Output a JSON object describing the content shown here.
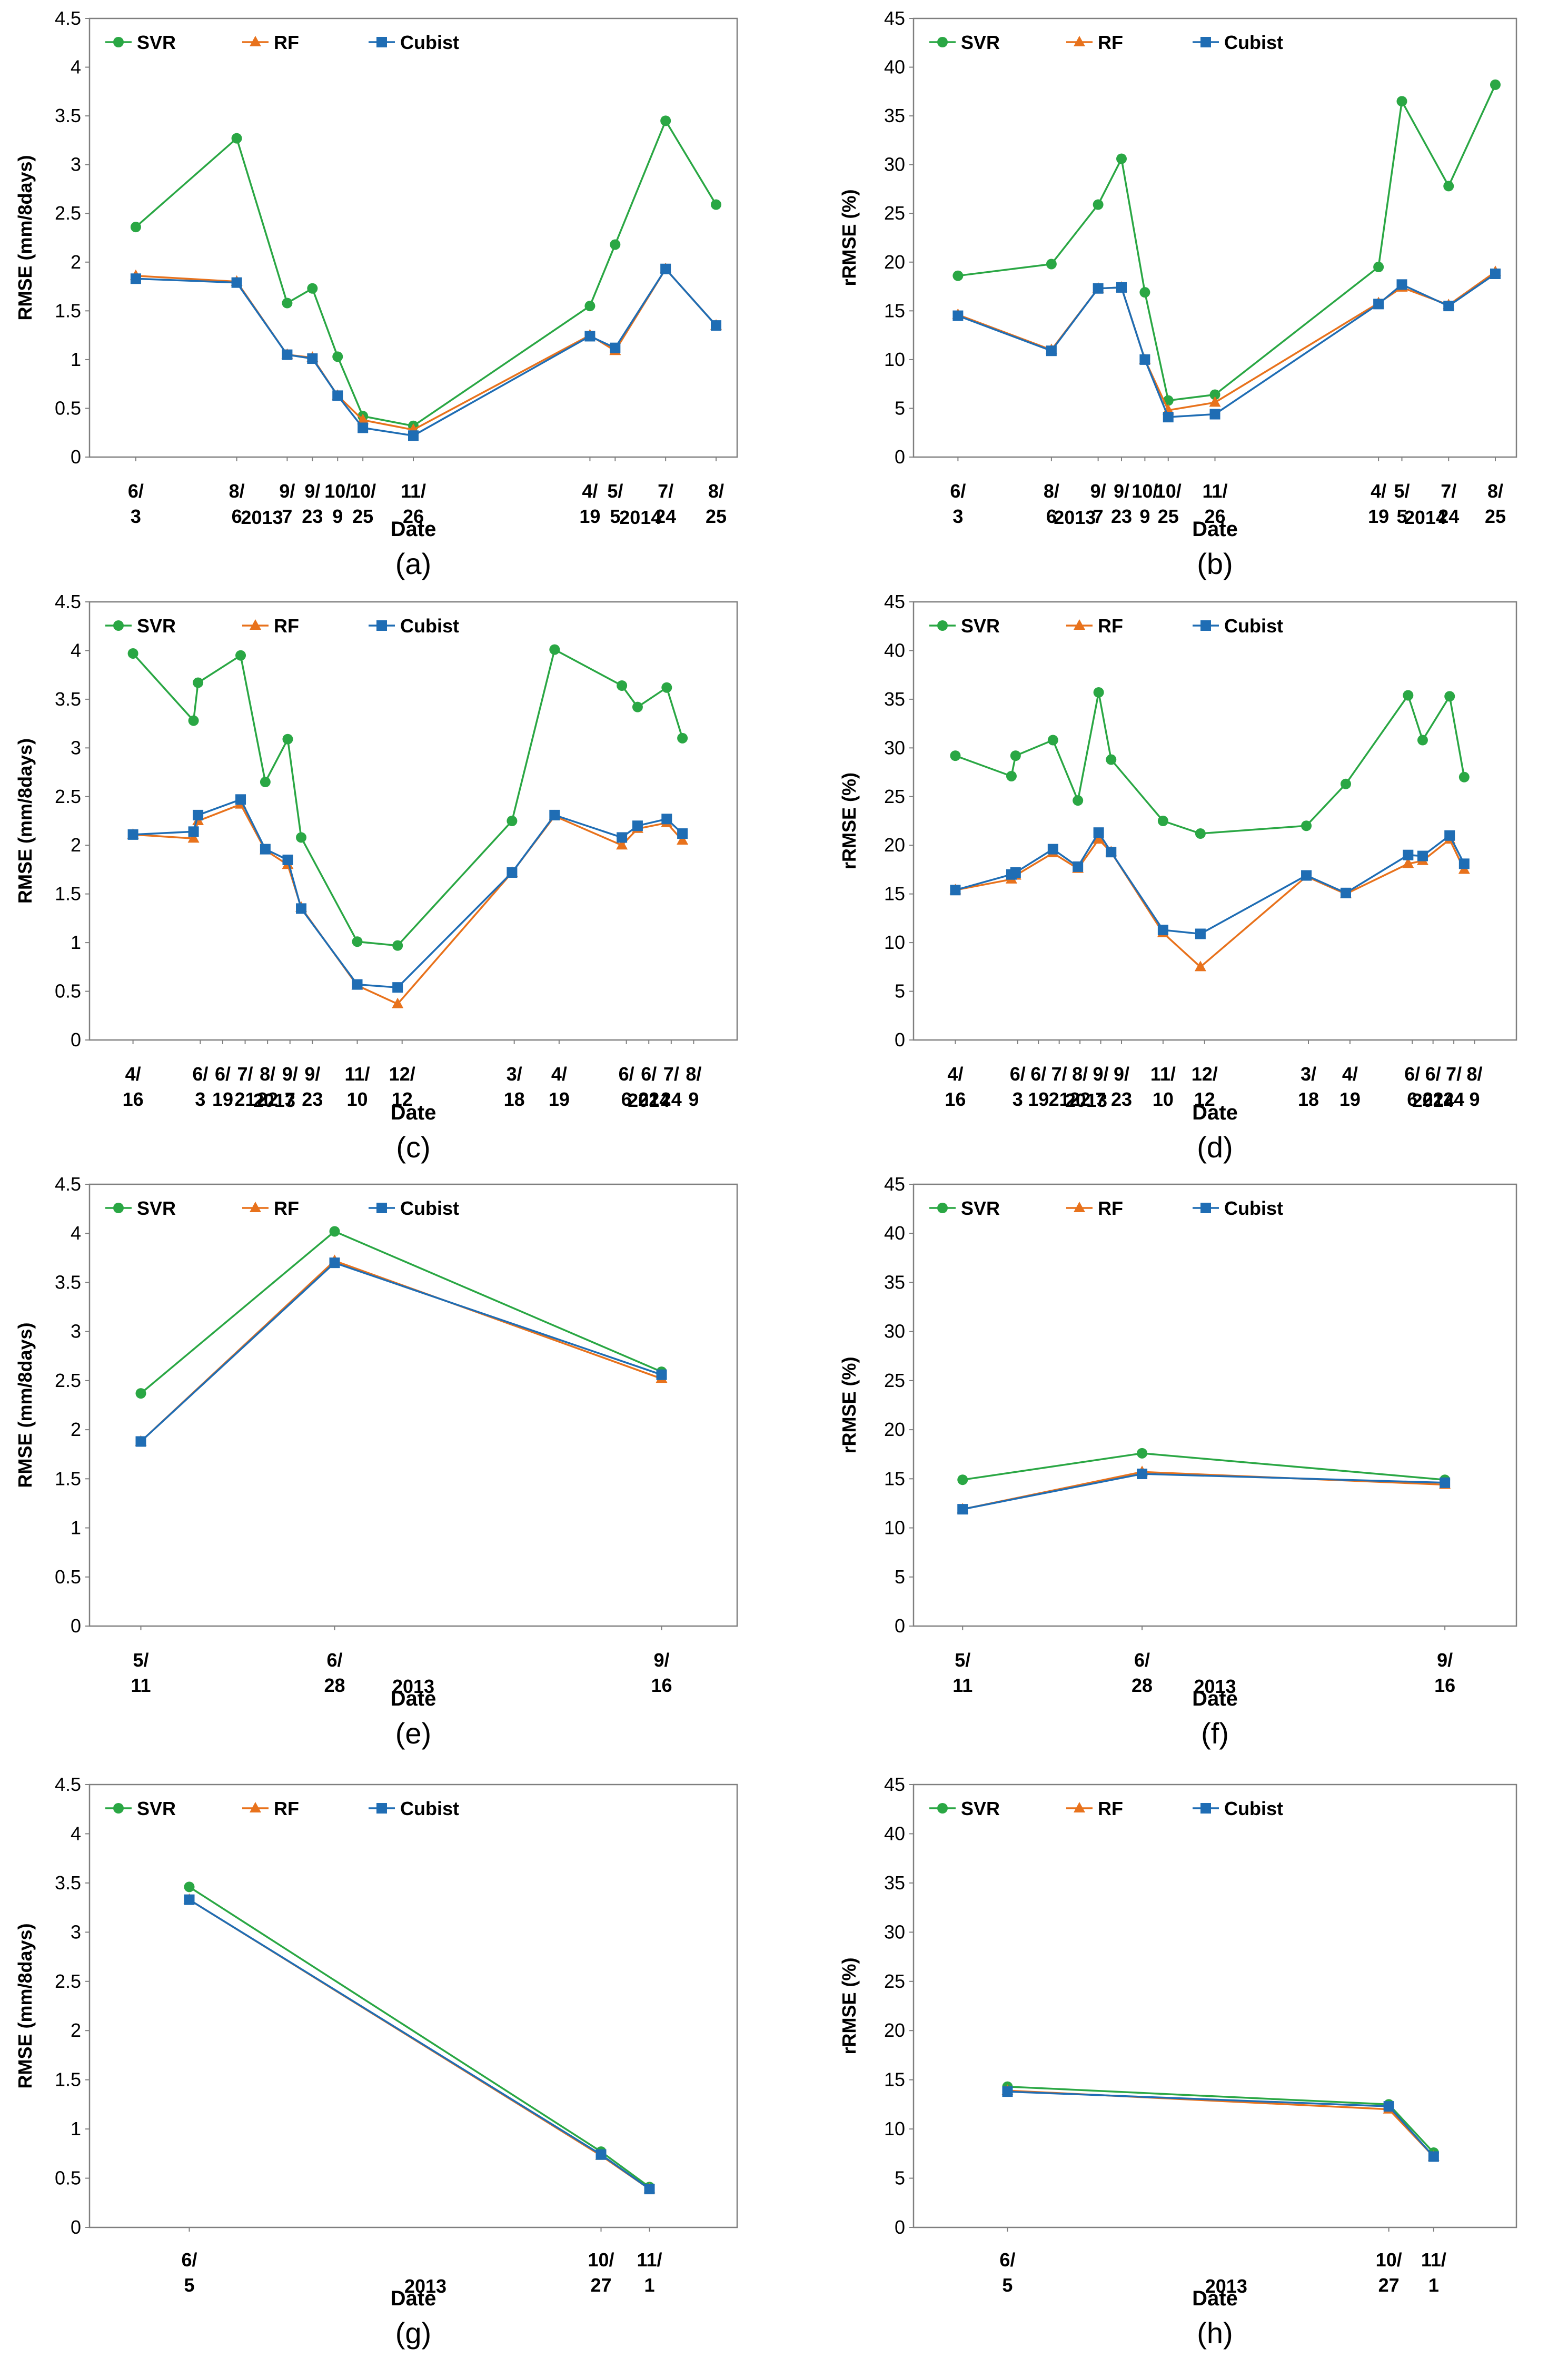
{
  "colors": {
    "SVR": "#2aa744",
    "RF": "#e8721c",
    "Cubist": "#1f6db4",
    "frame": "#7f7f7f"
  },
  "chart_data": [
    {
      "type": "line",
      "panel": "(a)",
      "title": "",
      "xlabel": "Date",
      "ylabel": "RMSE (mm/8days)",
      "ylim": [
        0,
        4.5
      ],
      "yticks": [
        "0",
        "0.5",
        "1",
        "1.5",
        "2",
        "2.5",
        "3",
        "3.5",
        "4",
        "4.5"
      ],
      "xrange": [
        0,
        24
      ],
      "x_ticks": [
        {
          "x": 1,
          "m": "6/",
          "d": "3"
        },
        {
          "x": 5,
          "m": "8/",
          "d": "6"
        },
        {
          "x": 7,
          "m": "9/",
          "d": "7"
        },
        {
          "x": 8,
          "m": "9/",
          "d": "23"
        },
        {
          "x": 9,
          "m": "10/",
          "d": "9"
        },
        {
          "x": 10,
          "m": "10/",
          "d": "25"
        },
        {
          "x": 12,
          "m": "11/",
          "d": "26"
        },
        {
          "x": 19,
          "m": "4/",
          "d": "19"
        },
        {
          "x": 20,
          "m": "5/",
          "d": "5"
        },
        {
          "x": 22,
          "m": "7/",
          "d": "24"
        },
        {
          "x": 24,
          "m": "8/",
          "d": "25"
        }
      ],
      "years": [
        {
          "label": "2013",
          "x": 6
        },
        {
          "label": "2014",
          "x": 21
        }
      ],
      "legend": [
        "SVR",
        "RF",
        "Cubist"
      ],
      "series": [
        {
          "name": "SVR",
          "x": [
            1,
            5,
            7,
            8,
            9,
            10,
            12,
            19,
            20,
            22,
            24
          ],
          "values": [
            2.36,
            3.27,
            1.58,
            1.73,
            1.03,
            0.42,
            0.32,
            1.55,
            2.18,
            3.45,
            2.59
          ]
        },
        {
          "name": "RF",
          "x": [
            1,
            5,
            7,
            8,
            9,
            10,
            12,
            19,
            20,
            22,
            24
          ],
          "values": [
            1.86,
            1.8,
            1.05,
            1.02,
            0.63,
            0.38,
            0.28,
            1.25,
            1.09,
            1.93,
            1.35
          ]
        },
        {
          "name": "Cubist",
          "x": [
            1,
            5,
            7,
            8,
            9,
            10,
            12,
            19,
            20,
            22,
            24
          ],
          "values": [
            1.83,
            1.79,
            1.05,
            1.01,
            0.63,
            0.3,
            0.22,
            1.24,
            1.12,
            1.93,
            1.35
          ]
        }
      ]
    },
    {
      "type": "line",
      "panel": "(b)",
      "title": "",
      "xlabel": "Date",
      "ylabel": "rRMSE (%)",
      "ylim": [
        0,
        45
      ],
      "yticks": [
        "0",
        "5",
        "10",
        "15",
        "20",
        "25",
        "30",
        "35",
        "40",
        "45"
      ],
      "xrange": [
        0,
        24
      ],
      "x_ticks": [
        {
          "x": 1,
          "m": "6/",
          "d": "3"
        },
        {
          "x": 5,
          "m": "8/",
          "d": "6"
        },
        {
          "x": 7,
          "m": "9/",
          "d": "7"
        },
        {
          "x": 8,
          "m": "9/",
          "d": "23"
        },
        {
          "x": 9,
          "m": "10/",
          "d": "9"
        },
        {
          "x": 10,
          "m": "10/",
          "d": "25"
        },
        {
          "x": 12,
          "m": "11/",
          "d": "26"
        },
        {
          "x": 19,
          "m": "4/",
          "d": "19"
        },
        {
          "x": 20,
          "m": "5/",
          "d": "5"
        },
        {
          "x": 22,
          "m": "7/",
          "d": "24"
        },
        {
          "x": 24,
          "m": "8/",
          "d": "25"
        }
      ],
      "years": [
        {
          "label": "2013",
          "x": 6
        },
        {
          "label": "2014",
          "x": 21
        }
      ],
      "legend": [
        "SVR",
        "RF",
        "Cubist"
      ],
      "series": [
        {
          "name": "SVR",
          "x": [
            1,
            5,
            7,
            8,
            9,
            10,
            12,
            19,
            20,
            22,
            24
          ],
          "values": [
            18.6,
            19.8,
            25.9,
            30.6,
            16.9,
            5.8,
            6.4,
            19.5,
            36.5,
            27.8,
            38.2
          ]
        },
        {
          "name": "RF",
          "x": [
            1,
            5,
            7,
            8,
            9,
            10,
            12,
            19,
            20,
            22,
            24
          ],
          "values": [
            14.6,
            11.0,
            17.3,
            17.4,
            10.0,
            4.8,
            5.6,
            15.8,
            17.4,
            15.6,
            19.0
          ]
        },
        {
          "name": "Cubist",
          "x": [
            1,
            5,
            7,
            8,
            9,
            10,
            12,
            19,
            20,
            22,
            24
          ],
          "values": [
            14.5,
            10.9,
            17.3,
            17.4,
            10.0,
            4.1,
            4.4,
            15.7,
            17.7,
            15.5,
            18.8
          ]
        }
      ]
    },
    {
      "type": "line",
      "panel": "(c)",
      "title": "",
      "xlabel": "Date",
      "ylabel": "RMSE (mm/8days)",
      "ylim": [
        0,
        4.5
      ],
      "yticks": [
        "0",
        "0.5",
        "1",
        "1.5",
        "2",
        "2.5",
        "3",
        "3.5",
        "4",
        "4.5"
      ],
      "xrange": [
        0,
        27
      ],
      "x_ticks": [
        {
          "x": 1,
          "m": "4/",
          "d": "16"
        },
        {
          "x": 4,
          "m": "6/",
          "d": "3"
        },
        {
          "x": 5,
          "m": "6/",
          "d": "19"
        },
        {
          "x": 6,
          "m": "7/",
          "d": "21"
        },
        {
          "x": 7,
          "m": "8/",
          "d": "22"
        },
        {
          "x": 8,
          "m": "9/",
          "d": "7"
        },
        {
          "x": 9,
          "m": "9/",
          "d": "23"
        },
        {
          "x": 11,
          "m": "11/",
          "d": "10"
        },
        {
          "x": 13,
          "m": "12/",
          "d": "12"
        },
        {
          "x": 18,
          "m": "3/",
          "d": "18"
        },
        {
          "x": 20,
          "m": "4/",
          "d": "19"
        },
        {
          "x": 23,
          "m": "6/",
          "d": "6"
        },
        {
          "x": 24,
          "m": "6/",
          "d": "22"
        },
        {
          "x": 25,
          "m": "7/",
          "d": "24"
        },
        {
          "x": 26,
          "m": "8/",
          "d": "9"
        }
      ],
      "years": [
        {
          "label": "2013",
          "x": 7.3
        },
        {
          "label": "2014",
          "x": 24
        }
      ],
      "legend": [
        "SVR",
        "RF",
        "Cubist"
      ],
      "series": [
        {
          "name": "SVR",
          "x": [
            1,
            3.7,
            3.9,
            5.8,
            6.9,
            7.9,
            8.5,
            11,
            12.8,
            17.9,
            19.8,
            22.8,
            23.5,
            24.8,
            25.5
          ],
          "values": [
            3.97,
            3.28,
            3.67,
            3.95,
            2.65,
            3.09,
            2.08,
            1.01,
            0.97,
            2.25,
            4.01,
            3.64,
            3.42,
            3.62,
            3.1
          ]
        },
        {
          "name": "RF",
          "x": [
            1,
            3.7,
            3.9,
            5.8,
            6.9,
            7.9,
            8.5,
            11,
            12.8,
            17.9,
            19.8,
            22.8,
            23.5,
            24.8,
            25.5
          ],
          "values": [
            2.11,
            2.07,
            2.25,
            2.42,
            1.95,
            1.8,
            1.36,
            0.56,
            0.37,
            1.72,
            2.3,
            2.0,
            2.17,
            2.23,
            2.05
          ]
        },
        {
          "name": "Cubist",
          "x": [
            1,
            3.7,
            3.9,
            5.8,
            6.9,
            7.9,
            8.5,
            11,
            12.8,
            17.9,
            19.8,
            22.8,
            23.5,
            24.8,
            25.5
          ],
          "values": [
            2.11,
            2.14,
            2.31,
            2.47,
            1.96,
            1.85,
            1.35,
            0.57,
            0.54,
            1.72,
            2.31,
            2.08,
            2.2,
            2.27,
            2.12
          ]
        }
      ]
    },
    {
      "type": "line",
      "panel": "(d)",
      "title": "",
      "xlabel": "Date",
      "ylabel": "rRMSE (%)",
      "ylim": [
        0,
        45
      ],
      "yticks": [
        "0",
        "5",
        "10",
        "15",
        "20",
        "25",
        "30",
        "35",
        "40",
        "45"
      ],
      "xrange": [
        0,
        27
      ],
      "x_ticks": [
        {
          "x": 1,
          "m": "4/",
          "d": "16"
        },
        {
          "x": 4,
          "m": "6/",
          "d": "3"
        },
        {
          "x": 5,
          "m": "6/",
          "d": "19"
        },
        {
          "x": 6,
          "m": "7/",
          "d": "21"
        },
        {
          "x": 7,
          "m": "8/",
          "d": "22"
        },
        {
          "x": 8,
          "m": "9/",
          "d": "7"
        },
        {
          "x": 9,
          "m": "9/",
          "d": "23"
        },
        {
          "x": 11,
          "m": "11/",
          "d": "10"
        },
        {
          "x": 13,
          "m": "12/",
          "d": "12"
        },
        {
          "x": 18,
          "m": "3/",
          "d": "18"
        },
        {
          "x": 20,
          "m": "4/",
          "d": "19"
        },
        {
          "x": 23,
          "m": "6/",
          "d": "6"
        },
        {
          "x": 24,
          "m": "6/",
          "d": "22"
        },
        {
          "x": 25,
          "m": "7/",
          "d": "24"
        },
        {
          "x": 26,
          "m": "8/",
          "d": "9"
        }
      ],
      "years": [
        {
          "label": "2013",
          "x": 7.3
        },
        {
          "label": "2014",
          "x": 24
        }
      ],
      "legend": [
        "SVR",
        "RF",
        "Cubist"
      ],
      "series": [
        {
          "name": "SVR",
          "x": [
            1,
            3.7,
            3.9,
            5.7,
            6.9,
            7.9,
            8.5,
            11,
            12.8,
            17.9,
            19.8,
            22.8,
            23.5,
            24.8,
            25.5
          ],
          "values": [
            29.2,
            27.1,
            29.2,
            30.8,
            24.6,
            35.7,
            28.8,
            22.5,
            21.2,
            22.0,
            26.3,
            35.4,
            30.8,
            35.3,
            27.0
          ]
        },
        {
          "name": "RF",
          "x": [
            1,
            3.7,
            3.9,
            5.7,
            6.9,
            7.9,
            8.5,
            11,
            12.8,
            17.9,
            19.8,
            22.8,
            23.5,
            24.8,
            25.5
          ],
          "values": [
            15.4,
            16.5,
            16.9,
            19.2,
            17.6,
            20.6,
            19.3,
            11.0,
            7.5,
            16.8,
            15.0,
            18.1,
            18.4,
            20.6,
            17.5
          ]
        },
        {
          "name": "Cubist",
          "x": [
            1,
            3.7,
            3.9,
            5.7,
            6.9,
            7.9,
            8.5,
            11,
            12.8,
            17.9,
            19.8,
            22.8,
            23.5,
            24.8,
            25.5
          ],
          "values": [
            15.4,
            17.0,
            17.2,
            19.6,
            17.8,
            21.3,
            19.3,
            11.3,
            10.9,
            16.9,
            15.1,
            19.0,
            18.9,
            21.0,
            18.1
          ]
        }
      ]
    },
    {
      "type": "line",
      "panel": "(e)",
      "title": "",
      "xlabel": "Date",
      "ylabel": "RMSE (mm/8days)",
      "ylim": [
        0,
        4.5
      ],
      "yticks": [
        "0",
        "0.5",
        "1",
        "1.5",
        "2",
        "2.5",
        "3",
        "3.5",
        "4",
        "4.5"
      ],
      "xrange": [
        0,
        10
      ],
      "x_ticks": [
        {
          "x": 0.5,
          "m": "5/",
          "d": "11"
        },
        {
          "x": 3.7,
          "m": "6/",
          "d": "28"
        },
        {
          "x": 9.1,
          "m": "9/",
          "d": "16"
        }
      ],
      "years": [
        {
          "label": "2013",
          "x": 5
        }
      ],
      "legend": [
        "SVR",
        "RF",
        "Cubist"
      ],
      "series": [
        {
          "name": "SVR",
          "x": [
            0.5,
            3.7,
            9.1
          ],
          "values": [
            2.37,
            4.02,
            2.59
          ]
        },
        {
          "name": "RF",
          "x": [
            0.5,
            3.7,
            9.1
          ],
          "values": [
            1.88,
            3.72,
            2.52
          ]
        },
        {
          "name": "Cubist",
          "x": [
            0.5,
            3.7,
            9.1
          ],
          "values": [
            1.88,
            3.7,
            2.56
          ]
        }
      ]
    },
    {
      "type": "line",
      "panel": "(f)",
      "title": "",
      "xlabel": "Date",
      "ylabel": "rRMSE (%)",
      "ylim": [
        0,
        45
      ],
      "yticks": [
        "0",
        "5",
        "10",
        "15",
        "20",
        "25",
        "30",
        "35",
        "40",
        "45"
      ],
      "xrange": [
        0,
        10
      ],
      "x_ticks": [
        {
          "x": 0.5,
          "m": "5/",
          "d": "11"
        },
        {
          "x": 3.7,
          "m": "6/",
          "d": "28"
        },
        {
          "x": 9.1,
          "m": "9/",
          "d": "16"
        }
      ],
      "years": [
        {
          "label": "2013",
          "x": 5
        }
      ],
      "legend": [
        "SVR",
        "RF",
        "Cubist"
      ],
      "series": [
        {
          "name": "SVR",
          "x": [
            0.5,
            3.7,
            9.1
          ],
          "values": [
            14.9,
            17.6,
            14.9
          ]
        },
        {
          "name": "RF",
          "x": [
            0.5,
            3.7,
            9.1
          ],
          "values": [
            11.9,
            15.7,
            14.4
          ]
        },
        {
          "name": "Cubist",
          "x": [
            0.5,
            3.7,
            9.1
          ],
          "values": [
            11.9,
            15.5,
            14.6
          ]
        }
      ]
    },
    {
      "type": "line",
      "panel": "(g)",
      "title": "",
      "xlabel": "Date",
      "ylabel": "RMSE (mm/8days)",
      "ylim": [
        0,
        4.5
      ],
      "yticks": [
        "0",
        "0.5",
        "1",
        "1.5",
        "2",
        "2.5",
        "3",
        "3.5",
        "4",
        "4.5"
      ],
      "xrange": [
        0,
        10
      ],
      "x_ticks": [
        {
          "x": 1.3,
          "m": "6/",
          "d": "5"
        },
        {
          "x": 8.1,
          "m": "10/",
          "d": "27"
        },
        {
          "x": 8.9,
          "m": "11/",
          "d": "1"
        }
      ],
      "years": [
        {
          "label": "2013",
          "x": 5.2
        }
      ],
      "legend": [
        "SVR",
        "RF",
        "Cubist"
      ],
      "series": [
        {
          "name": "SVR",
          "x": [
            1.3,
            8.1,
            8.9
          ],
          "values": [
            3.46,
            0.77,
            0.41
          ]
        },
        {
          "name": "RF",
          "x": [
            1.3,
            8.1,
            8.9
          ],
          "values": [
            3.33,
            0.73,
            0.39
          ]
        },
        {
          "name": "Cubist",
          "x": [
            1.3,
            8.1,
            8.9
          ],
          "values": [
            3.33,
            0.74,
            0.39
          ]
        }
      ]
    },
    {
      "type": "line",
      "panel": "(h)",
      "title": "",
      "xlabel": "Date",
      "ylabel": "rRMSE (%)",
      "ylim": [
        0,
        45
      ],
      "yticks": [
        "0",
        "5",
        "10",
        "15",
        "20",
        "25",
        "30",
        "35",
        "40",
        "45"
      ],
      "xrange": [
        0,
        10
      ],
      "x_ticks": [
        {
          "x": 1.3,
          "m": "6/",
          "d": "5"
        },
        {
          "x": 8.1,
          "m": "10/",
          "d": "27"
        },
        {
          "x": 8.9,
          "m": "11/",
          "d": "1"
        }
      ],
      "years": [
        {
          "label": "2013",
          "x": 5.2
        }
      ],
      "legend": [
        "SVR",
        "RF",
        "Cubist"
      ],
      "series": [
        {
          "name": "SVR",
          "x": [
            1.3,
            8.1,
            8.9
          ],
          "values": [
            14.3,
            12.5,
            7.6
          ]
        },
        {
          "name": "RF",
          "x": [
            1.3,
            8.1,
            8.9
          ],
          "values": [
            13.9,
            12.0,
            7.2
          ]
        },
        {
          "name": "Cubist",
          "x": [
            1.3,
            8.1,
            8.9
          ],
          "values": [
            13.8,
            12.3,
            7.2
          ]
        }
      ]
    }
  ]
}
